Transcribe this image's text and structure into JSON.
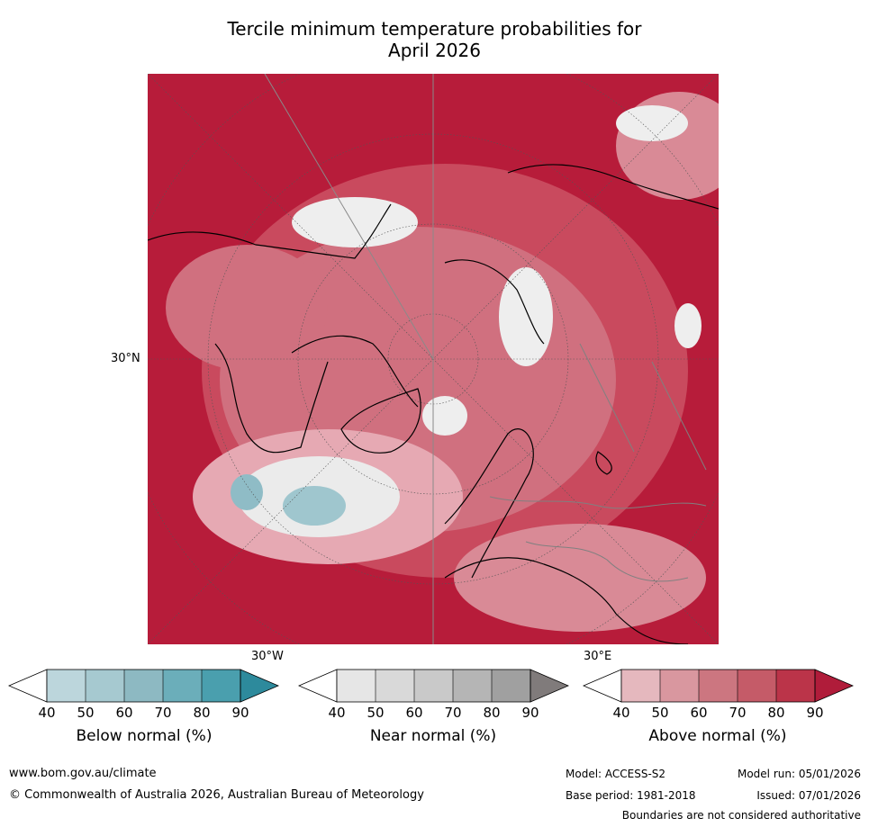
{
  "title": {
    "line1": "Tercile minimum temperature probabilities for",
    "line2": "April 2026"
  },
  "map": {
    "latitude_label": "30°N",
    "longitude_labels": [
      "30°W",
      "30°E"
    ],
    "colors": {
      "above_dark": "#b71c3a",
      "above_mid": "#d46a7c",
      "above_light": "#e6a9b3",
      "near": "#e5e5e5",
      "below": "#8fbcc6",
      "coast": "#000000",
      "border": "#808080"
    }
  },
  "colorbars": [
    {
      "label": "Below normal (%)",
      "ticks": [
        "40",
        "50",
        "60",
        "70",
        "80",
        "90"
      ],
      "colors": [
        "#bcd6dc",
        "#a6c9d0",
        "#8db9c2",
        "#6baeba",
        "#4a9fae",
        "#2d8a9c"
      ]
    },
    {
      "label": "Near normal (%)",
      "ticks": [
        "40",
        "50",
        "60",
        "70",
        "80",
        "90"
      ],
      "colors": [
        "#e6e6e6",
        "#d9d9d9",
        "#c9c9c9",
        "#b5b5b5",
        "#a0a0a0",
        "#807b7b"
      ]
    },
    {
      "label": "Above normal (%)",
      "ticks": [
        "40",
        "50",
        "60",
        "70",
        "80",
        "90"
      ],
      "colors": [
        "#e5b8be",
        "#d9979f",
        "#cc7680",
        "#c55b68",
        "#bb3449",
        "#b01c3a"
      ]
    }
  ],
  "footer": {
    "website": "www.bom.gov.au/climate",
    "copyright": "© Commonwealth of Australia 2026, Australian Bureau of Meteorology",
    "model": "Model: ACCESS-S2",
    "base_period": "Base period: 1981-2018",
    "model_run": "Model run: 05/01/2026",
    "issued": "Issued: 07/01/2026",
    "disclaimer": "Boundaries are not considered authoritative"
  }
}
